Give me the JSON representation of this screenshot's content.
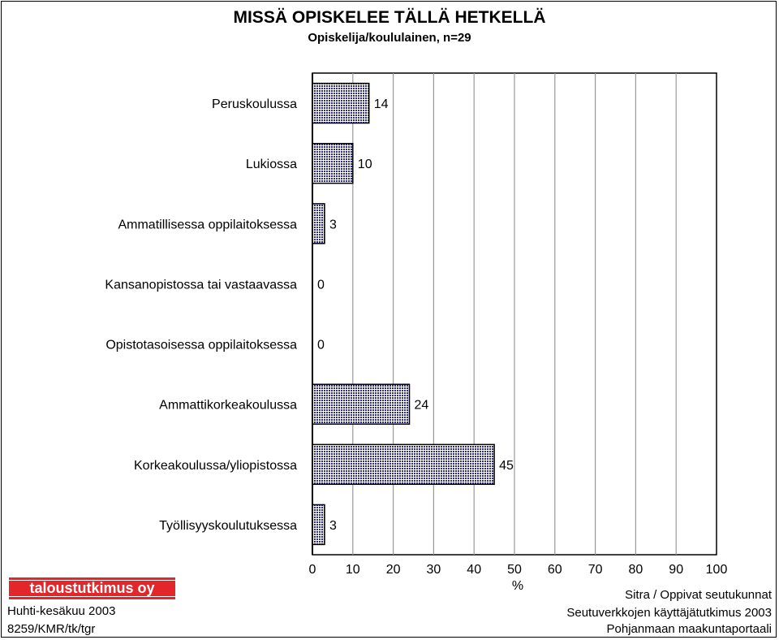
{
  "chart_data": {
    "type": "bar",
    "orientation": "horizontal",
    "title": "MISSÄ OPISKELEE TÄLLÄ HETKELLÄ",
    "subtitle": "Opiskelija/koululainen, n=29",
    "categories": [
      "Peruskoulussa",
      "Lukiossa",
      "Ammatillisessa oppilaitoksessa",
      "Kansanopistossa tai vastaavassa",
      "Opistotasoisessa oppilaitoksessa",
      "Ammattikorkeakoulussa",
      "Korkeakoulussa/yliopistossa",
      "Työllisyyskoulutuksessa"
    ],
    "values": [
      14,
      10,
      3,
      0,
      0,
      24,
      45,
      3
    ],
    "xlabel": "%",
    "xlim": [
      0,
      100
    ],
    "xticks": [
      0,
      10,
      20,
      30,
      40,
      50,
      60,
      70,
      80,
      90,
      100
    ],
    "grid": true,
    "bar_color": "#9a9ae0"
  },
  "logo": {
    "text": "taloustutkimus oy",
    "color": "#e2262a"
  },
  "footer": {
    "left": [
      "Huhti-kesäkuu 2003",
      "8259/KMR/tk/tgr"
    ],
    "right": [
      "Sitra / Oppivat seutukunnat",
      "Seutuverkkojen käyttäjätutkimus 2003",
      "Pohjanmaan maakuntaportaali"
    ]
  }
}
